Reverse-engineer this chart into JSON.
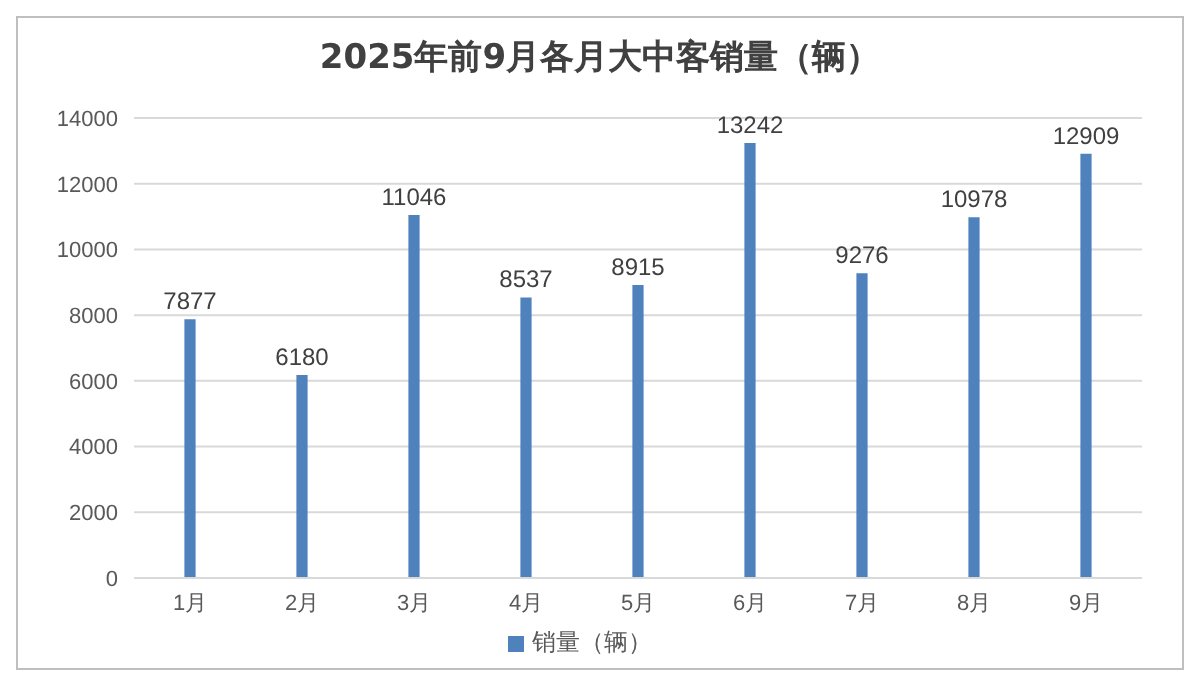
{
  "chart_data": {
    "type": "bar",
    "title": "2025年前9月各月大中客销量（辆）",
    "categories": [
      "1月",
      "2月",
      "3月",
      "4月",
      "5月",
      "6月",
      "7月",
      "8月",
      "9月"
    ],
    "series": [
      {
        "name": "销量（辆）",
        "color": "#4f81bd",
        "values": [
          7877,
          6180,
          11046,
          8537,
          8915,
          13242,
          9276,
          10978,
          12909
        ]
      }
    ],
    "ylim": [
      0,
      14000
    ],
    "yticks": [
      0,
      2000,
      4000,
      6000,
      8000,
      10000,
      12000,
      14000
    ],
    "grid": "y",
    "legend": "bottom",
    "data_labels": true
  }
}
